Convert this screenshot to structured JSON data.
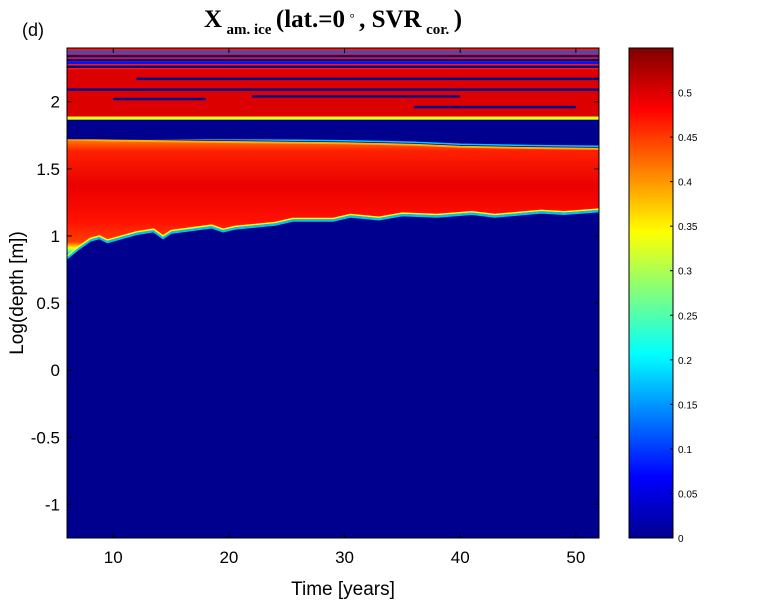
{
  "chart_data": {
    "type": "heatmap",
    "panel_label": "(d)",
    "title": {
      "symbol": "X",
      "symbol_subscript": "am. ice",
      "args_open": " (lat.=0",
      "degree": "°",
      "args_mid": ", SVR",
      "svr_subscript": "cor.",
      "args_close": ")"
    },
    "xlabel": "Time [years]",
    "ylabel": "Log(depth [m])",
    "xlim": [
      6,
      52
    ],
    "ylim": [
      -1.25,
      2.4
    ],
    "x_ticks": [
      10,
      20,
      30,
      40,
      50
    ],
    "x_tick_labels": [
      "10",
      "20",
      "30",
      "40",
      "50"
    ],
    "y_ticks": [
      -1,
      -0.5,
      0,
      0.5,
      1,
      1.5,
      2
    ],
    "y_tick_labels": [
      "-1",
      "-0.5",
      "0",
      "0.5",
      "1",
      "1.5",
      "2"
    ],
    "colorbar": {
      "colormap": "jet",
      "range": [
        0,
        0.55
      ],
      "ticks": [
        0,
        0.05,
        0.1,
        0.15,
        0.2,
        0.25,
        0.3,
        0.35,
        0.4,
        0.45,
        0.5
      ],
      "tick_labels": [
        "0",
        "0.05",
        "0.1",
        "0.15",
        "0.2",
        "0.25",
        "0.3",
        "0.35",
        "0.4",
        "0.45",
        "0.5"
      ]
    },
    "ice_front_logdepth": {
      "x": [
        6,
        7,
        8,
        8.8,
        9.5,
        12,
        13.5,
        14.3,
        15,
        18.5,
        19.5,
        20.5,
        24,
        25.5,
        29,
        30.5,
        33,
        35,
        38,
        41,
        43,
        47,
        49,
        52
      ],
      "y": [
        0.85,
        0.92,
        0.98,
        1.0,
        0.97,
        1.03,
        1.05,
        1.0,
        1.04,
        1.08,
        1.05,
        1.07,
        1.1,
        1.13,
        1.13,
        1.16,
        1.14,
        1.17,
        1.16,
        1.18,
        1.16,
        1.19,
        1.18,
        1.2
      ]
    },
    "ice_band_top_logdepth": {
      "x": [
        6,
        10,
        20,
        30,
        36,
        40,
        46,
        52
      ],
      "y": [
        1.72,
        1.71,
        1.7,
        1.69,
        1.68,
        1.665,
        1.655,
        1.65
      ]
    },
    "gap_band": {
      "bottom": 1.72,
      "top": 1.865,
      "value": 0
    },
    "upper_ice_layers": [
      {
        "y0": 1.865,
        "y1": 1.89,
        "value": 0.33
      },
      {
        "y0": 1.89,
        "y1": 2.24,
        "value": 0.5
      },
      {
        "y0": 2.24,
        "y1": 2.4,
        "value": 0.47
      }
    ],
    "upper_dark_streaks": [
      {
        "y": 2.26,
        "x0": 6,
        "x1": 52,
        "value": 0
      },
      {
        "y": 2.29,
        "x0": 6,
        "x1": 52,
        "value": 0.08
      },
      {
        "y": 2.31,
        "x0": 6,
        "x1": 52,
        "value": 0
      },
      {
        "y": 2.34,
        "x0": 6,
        "x1": 52,
        "value": 0
      },
      {
        "y": 2.37,
        "x0": 6,
        "x1": 52,
        "value": 0.12
      },
      {
        "y": 2.09,
        "x0": 6,
        "x1": 52,
        "value": 0
      },
      {
        "y": 2.17,
        "x0": 12,
        "x1": 52,
        "value": 0
      },
      {
        "y": 2.04,
        "x0": 22,
        "x1": 40,
        "value": 0
      },
      {
        "y": 1.96,
        "x0": 36,
        "x1": 50,
        "value": 0
      },
      {
        "y": 2.02,
        "x0": 10,
        "x1": 18,
        "value": 0
      }
    ]
  }
}
